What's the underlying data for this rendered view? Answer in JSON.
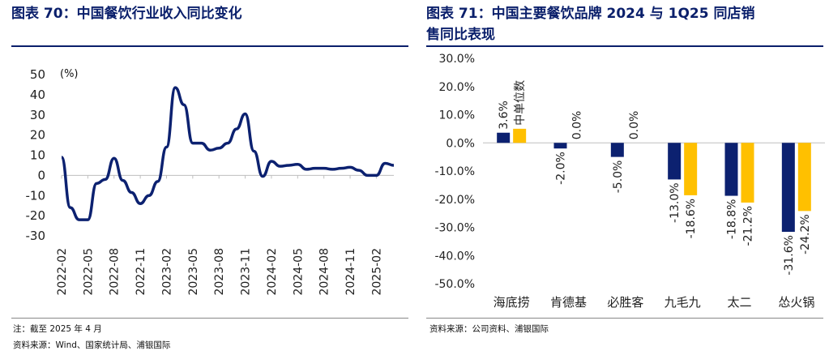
{
  "left": {
    "title_tag": "图表 70：",
    "title_text": "中国餐饮行业收入同比变化",
    "note_line1": "注：截至 2025 年 4 月",
    "source": "资料来源：Wind、国家统计局、浦银国际"
  },
  "right": {
    "title_tag": "图表 71：",
    "title_text": "中国主要餐饮品牌 2024 与 1Q25 同店销",
    "title_text2": "售同比表现",
    "source": "资料来源：公司资料、浦银国际"
  },
  "colors": {
    "navy": "#0c2170",
    "gold": "#ffc000",
    "title": "#0a1f6b"
  },
  "chart_data": [
    {
      "type": "line",
      "unit_label": "(%)",
      "ylim": [
        -30,
        50
      ],
      "yticks": [
        50,
        40,
        30,
        20,
        10,
        0,
        -10,
        -20,
        -30
      ],
      "xtick_labels": [
        "2022-02",
        "2022-05",
        "2022-08",
        "2022-11",
        "2023-02",
        "2023-05",
        "2023-08",
        "2023-11",
        "2024-02",
        "2024-05",
        "2024-08",
        "2024-11",
        "2025-02"
      ],
      "x": [
        "2022-02",
        "2022-03",
        "2022-04",
        "2022-05",
        "2022-06",
        "2022-07",
        "2022-08",
        "2022-09",
        "2022-10",
        "2022-11",
        "2022-12",
        "2023-01",
        "2023-02",
        "2023-03",
        "2023-04",
        "2023-05",
        "2023-06",
        "2023-07",
        "2023-08",
        "2023-09",
        "2023-10",
        "2023-11",
        "2023-12",
        "2024-01",
        "2024-02",
        "2024-03",
        "2024-04",
        "2024-05",
        "2024-06",
        "2024-07",
        "2024-08",
        "2024-09",
        "2024-10",
        "2024-11",
        "2024-12",
        "2025-01",
        "2025-02",
        "2025-03",
        "2025-04"
      ],
      "y": [
        9,
        -16,
        -22,
        -22,
        -4,
        -2,
        8.5,
        -2.5,
        -8.5,
        -14,
        -10,
        -3,
        14,
        43.5,
        35,
        16,
        16,
        12.5,
        13.5,
        16,
        23,
        30.5,
        12,
        -0.5,
        7,
        4.5,
        5,
        5.5,
        3,
        3.5,
        3.5,
        3,
        3.5,
        4,
        2.5,
        0,
        0,
        6,
        5
      ],
      "grid": false
    },
    {
      "type": "bar",
      "categories": [
        "海底捞",
        "肯德基",
        "必胜客",
        "九毛九",
        "太二",
        "怂火锅"
      ],
      "ylim": [
        -50,
        30
      ],
      "yticks": [
        "30.0%",
        "20.0%",
        "10.0%",
        "0.0%",
        "-10.0%",
        "-20.0%",
        "-30.0%",
        "-40.0%",
        "-50.0%"
      ],
      "series": [
        {
          "values": [
            3.6,
            -2.0,
            -5.0,
            -13.0,
            -18.8,
            -31.6
          ],
          "labels": [
            "3.6%",
            "-2.0%",
            "-5.0%",
            "-13.0%",
            "-18.8%",
            "-31.6%"
          ]
        },
        {
          "values": [
            5.0,
            0.0,
            0.0,
            -18.6,
            -21.2,
            -24.2
          ],
          "labels": [
            "中单位数",
            "0.0%",
            "0.0%",
            "-18.6%",
            "-21.2%",
            "-24.2%"
          ]
        }
      ],
      "grid": false
    }
  ]
}
